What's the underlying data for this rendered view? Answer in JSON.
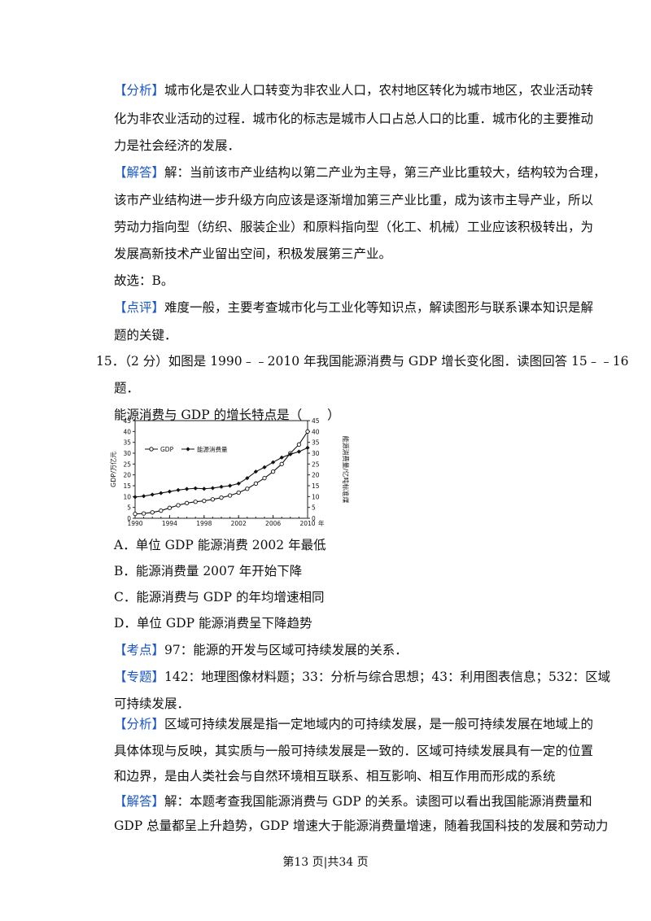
{
  "analysis1": {
    "tag": "【分析】",
    "lines": [
      "城市化是农业人口转变为非农业人口，农村地区转化为城市地区，农业活动转",
      "化为非农业活动的过程．城市化的标志是城市人口占总人口的比重．城市化的主要推动",
      "力是社会经济的发展．"
    ]
  },
  "answer1": {
    "tag": "【解答】",
    "lines": [
      "解：当前该市产业结构以第二产业为主导，第三产业比重较大，结构较为合理，",
      "该市产业结构进一步升级方向应该是逐渐增加第三产业比重，成为该市主导产业，所以",
      "劳动力指向型（纺织、服装企业）和原料指向型（化工、机械）工业应该积极转出，为",
      "发展高新技术产业留出空间，积极发展第三产业。"
    ]
  },
  "choice1": "故选：B。",
  "comment1": {
    "tag": "【点评】",
    "lines": [
      "难度一般，主要考查城市化与工业化等知识点，解读图形与联系课本知识是解",
      "题的关键．"
    ]
  },
  "question15": {
    "lines": [
      "15．（2 分）如图是 1990﹣﹣2010 年我国能源消费与 GDP 增长变化图．读图回答 15﹣﹣16",
      "题．"
    ],
    "stem": "能源消费与 GDP 的增长特点是（　　）",
    "options": [
      "A．单位 GDP 能源消费 2002 年最低",
      "B．能源消费量 2007 年开始下降",
      "C．能源消费与 GDP 的年均增速相同",
      "D．单位 GDP 能源消费呈下降趋势"
    ]
  },
  "kaodian": {
    "tag": "【考点】",
    "text": "97：能源的开发与区域可持续发展的关系．"
  },
  "zhuanti": {
    "tag": "【专题】",
    "lines": [
      "142：地理图像材料题；33：分析与综合思想；43：利用图表信息；532：区域",
      "可持续发展．"
    ]
  },
  "analysis2": {
    "tag": "【分析】",
    "lines": [
      "区域可持续发展是指一定地域内的可持续发展，是一般可持续发展在地域上的",
      "具体体现与反映，其实质与一般可持续发展是一致的．区域可持续发展具有一定的位置",
      "和边界，是由人类社会与自然环境相互联系、相互影响、相互作用而形成的系统"
    ]
  },
  "answer2": {
    "tag": "【解答】",
    "lines": [
      "解：本题考查我国能源消费与 GDP 的关系。读图可以看出我国能源消费量和",
      "GDP 总量都呈上升趋势，GDP 增速大于能源消费量增速，随着我国科技的发展和劳动力"
    ]
  },
  "footer": "第13 页|共34 页",
  "chart_data": {
    "type": "line",
    "x": [
      1990,
      1991,
      1992,
      1993,
      1994,
      1995,
      1996,
      1997,
      1998,
      1999,
      2000,
      2001,
      2002,
      2003,
      2004,
      2005,
      2006,
      2007,
      2008,
      2009,
      2010
    ],
    "x_ticks": [
      "1990",
      "1994",
      "1998",
      "2002",
      "2006",
      "2010"
    ],
    "x_unit": "年",
    "series": [
      {
        "name": "GDP",
        "axis": "left",
        "marker": "open-circle",
        "values": [
          2.0,
          2.2,
          2.7,
          3.5,
          4.8,
          6.0,
          7.0,
          7.6,
          8.0,
          8.7,
          9.5,
          10.5,
          11.8,
          13.6,
          16.0,
          18.5,
          21.5,
          25.0,
          30.0,
          34.0,
          40.0
        ]
      },
      {
        "name": "能源消费量",
        "axis": "right",
        "marker": "filled-diamond",
        "values": [
          9.8,
          10.2,
          10.9,
          11.6,
          12.3,
          13.0,
          13.5,
          13.8,
          13.6,
          13.9,
          14.5,
          15.0,
          16.0,
          18.5,
          21.5,
          23.5,
          25.8,
          28.0,
          29.5,
          30.7,
          32.5
        ]
      }
    ],
    "ylabel_left": "GDP/万亿元",
    "ylabel_right": "能源消费量/亿吨标准煤",
    "ylim": [
      0,
      45
    ],
    "y_ticks": [
      0,
      5,
      10,
      15,
      20,
      25,
      30,
      35,
      40,
      45
    ],
    "legend_position": "top-left"
  }
}
